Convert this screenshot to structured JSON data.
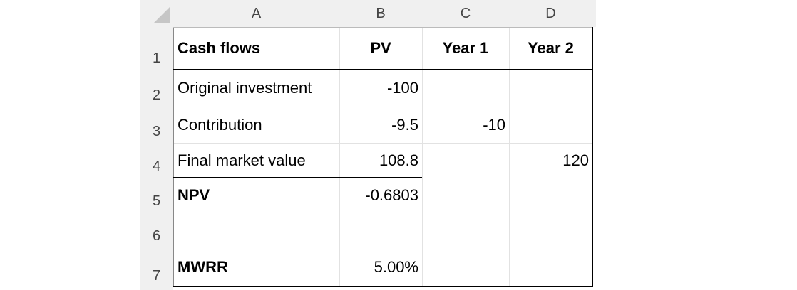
{
  "columns": [
    "A",
    "B",
    "C",
    "D"
  ],
  "rows": [
    "1",
    "2",
    "3",
    "4",
    "5",
    "6",
    "7"
  ],
  "cells": {
    "A1": "Cash flows",
    "B1": "PV",
    "C1": "Year 1",
    "D1": "Year 2",
    "A2": "Original investment",
    "B2": "-100",
    "A3": "Contribution",
    "B3": "-9.5",
    "C3": "-10",
    "A4": "Final market value",
    "B4": "108.8",
    "D4": "120",
    "A5": "NPV",
    "B5": "-0.6803",
    "A7": "MWRR",
    "B7": "5.00%"
  },
  "colors": {
    "header_bg": "#f0f0f0",
    "gridline": "#e2e2e2",
    "teal_border": "#2bb5a0",
    "text": "#000000"
  }
}
